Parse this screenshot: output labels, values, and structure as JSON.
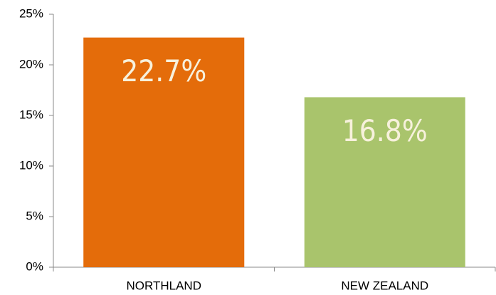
{
  "chart_data": {
    "type": "bar",
    "categories": [
      "NORTHLAND",
      "NEW ZEALAND"
    ],
    "values": [
      22.7,
      16.8
    ],
    "value_labels": [
      "22.7%",
      "16.8%"
    ],
    "colors": [
      "#e46c0a",
      "#a9c46c"
    ],
    "ylim": [
      0,
      25
    ],
    "yticks": [
      {
        "value": 0,
        "label": "0%"
      },
      {
        "value": 5,
        "label": "5%"
      },
      {
        "value": 10,
        "label": "10%"
      },
      {
        "value": 15,
        "label": "15%"
      },
      {
        "value": 20,
        "label": "20%"
      },
      {
        "value": 25,
        "label": "25%"
      }
    ],
    "grid": false
  }
}
